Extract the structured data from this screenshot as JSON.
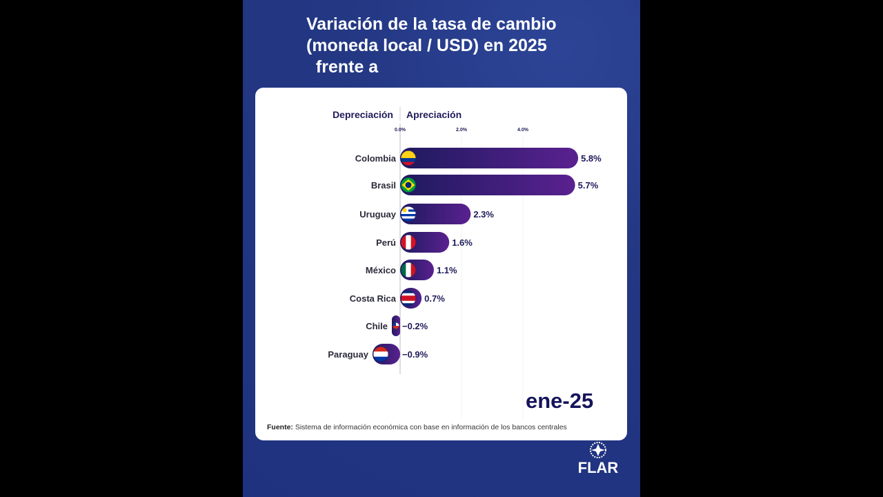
{
  "title_lines": [
    "Variación de la tasa de cambio",
    "(moneda local / USD) en 2025",
    "  frente a"
  ],
  "period": "ene-25",
  "source_label": "Fuente:",
  "source_text": "Sistema de información económica con base en información de los bancos centrales",
  "logo_text": "FLAR",
  "colors": {
    "bar_start": "#1e1a5e",
    "bar_end": "#5a2190",
    "background": "#233783"
  },
  "chart_data": {
    "type": "bar",
    "orientation": "horizontal",
    "header_left": "Depreciación",
    "header_right": "Apreciación",
    "tick_labels": [
      "0.0%",
      "2.0%",
      "4.0%"
    ],
    "ticks": [
      0,
      2,
      4
    ],
    "categories": [
      "Colombia",
      "Brasil",
      "Uruguay",
      "Perú",
      "México",
      "Costa Rica",
      "Chile",
      "Paraguay"
    ],
    "flags": [
      "colombia-flag",
      "brazil-flag",
      "uruguay-flag",
      "peru-flag",
      "mexico-flag",
      "costa-rica-flag",
      "chile-flag",
      "paraguay-flag"
    ],
    "values": [
      5.8,
      5.7,
      2.3,
      1.6,
      1.1,
      0.7,
      -0.2,
      -0.9
    ],
    "value_labels": [
      "5.8%",
      "5.7%",
      "2.3%",
      "1.6%",
      "1.1%",
      "0.7%",
      "−0.2%",
      "−0.9%"
    ],
    "grid": true
  }
}
